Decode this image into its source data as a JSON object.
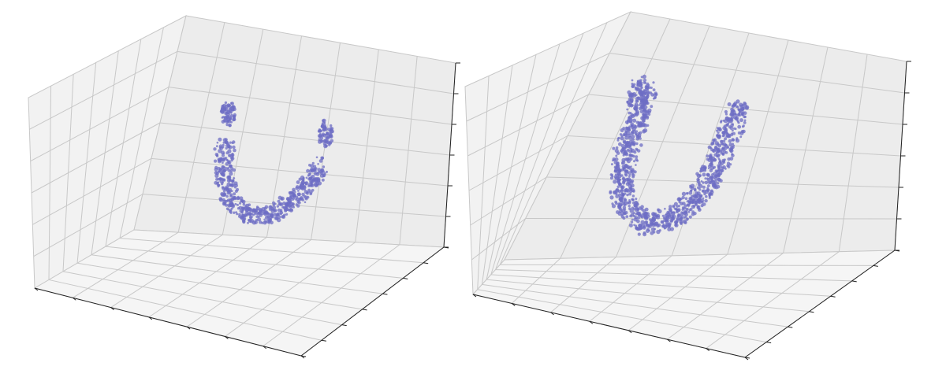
{
  "colors": {
    "background": "#ffffff",
    "pane_left": "#f2f2f2",
    "pane_back": "#ececec",
    "pane_floor": "#f5f5f5",
    "grid": "#c8c8c8",
    "axis": "#222222",
    "point": "#6e6ec4"
  },
  "chart_data": [
    {
      "type": "scatter3d",
      "title": "",
      "xlabel": "",
      "ylabel": "",
      "zlabel": "",
      "tick_labels_visible": false,
      "grid": true,
      "series": [
        {
          "color": "#6e6ec4",
          "shape": "U-shaped point cloud with two detached fragments at the tips",
          "points_xyz": [
            [
              0.12,
              0.5,
              0.7
            ],
            [
              0.3,
              0.5,
              0.32
            ],
            [
              0.5,
              0.5,
              0.2
            ],
            [
              0.7,
              0.5,
              0.3
            ],
            [
              0.88,
              0.5,
              0.65
            ]
          ]
        }
      ]
    },
    {
      "type": "scatter3d",
      "title": "",
      "xlabel": "",
      "ylabel": "",
      "zlabel": "",
      "tick_labels_visible": false,
      "grid": true,
      "series": [
        {
          "color": "#6e6ec4",
          "shape": "continuous U-shaped point cloud with taller arms",
          "points_xyz": [
            [
              0.12,
              0.5,
              0.9
            ],
            [
              0.3,
              0.5,
              0.35
            ],
            [
              0.5,
              0.5,
              0.22
            ],
            [
              0.7,
              0.5,
              0.4
            ],
            [
              0.88,
              0.5,
              0.9
            ]
          ]
        }
      ]
    }
  ]
}
